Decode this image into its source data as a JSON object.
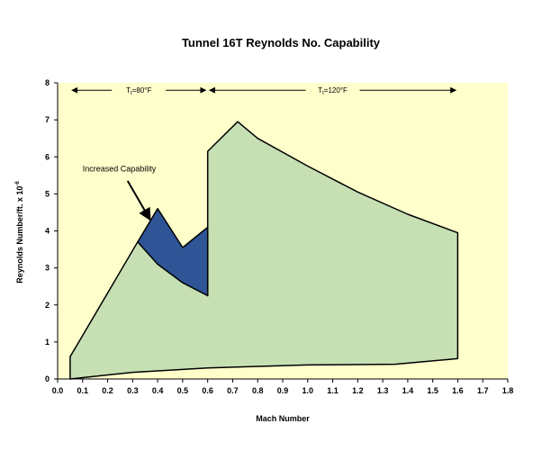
{
  "chart_data": {
    "type": "area",
    "title": "Tunnel 16T Reynolds No. Capability",
    "xlabel": "Mach Number",
    "ylabel": "Reynolds Number/ft. x 10",
    "ylabel_exponent": "-6",
    "xlim": [
      0.0,
      1.8
    ],
    "ylim": [
      0,
      8
    ],
    "x_ticks": [
      "0.0",
      "0.1",
      "0.2",
      "0.3",
      "0.4",
      "0.5",
      "0.6",
      "0.7",
      "0.8",
      "0.9",
      "1.0",
      "1.1",
      "1.2",
      "1.3",
      "1.4",
      "1.5",
      "1.6",
      "1.7",
      "1.8"
    ],
    "y_ticks": [
      "0",
      "1",
      "2",
      "3",
      "4",
      "5",
      "6",
      "7",
      "8"
    ],
    "grid": false,
    "colors": {
      "plot_background": "#ffffcc",
      "base_envelope_fill": "#c6e0b4",
      "increased_fill": "#2f5597",
      "outline": "#000000"
    },
    "series": [
      {
        "role": "base envelope",
        "polygon": [
          [
            0.05,
            0.0
          ],
          [
            0.05,
            0.6
          ],
          [
            0.32,
            3.7
          ],
          [
            0.6,
            2.25
          ],
          [
            0.6,
            6.15
          ],
          [
            0.72,
            6.95
          ],
          [
            0.8,
            6.5
          ],
          [
            1.0,
            5.75
          ],
          [
            1.2,
            5.05
          ],
          [
            1.4,
            4.45
          ],
          [
            1.6,
            3.95
          ],
          [
            1.6,
            0.55
          ],
          [
            1.35,
            0.4
          ],
          [
            1.0,
            0.38
          ],
          [
            0.6,
            0.3
          ],
          [
            0.3,
            0.18
          ],
          [
            0.05,
            0.0
          ]
        ]
      },
      {
        "role": "increased capability",
        "polygon": [
          [
            0.32,
            3.7
          ],
          [
            0.4,
            4.6
          ],
          [
            0.5,
            3.55
          ],
          [
            0.6,
            4.1
          ],
          [
            0.6,
            2.25
          ],
          [
            0.5,
            2.6
          ],
          [
            0.4,
            3.1
          ],
          [
            0.32,
            3.7
          ]
        ]
      }
    ],
    "annotations": [
      {
        "text": "Increased Capability",
        "label_at": [
          0.1,
          5.6
        ],
        "arrow_from": [
          0.28,
          5.35
        ],
        "arrow_to": [
          0.37,
          4.3
        ]
      }
    ],
    "ranges": [
      {
        "label": "T",
        "subscript": "t",
        "value": "=80°F",
        "x_start": 0.05,
        "x_end": 0.6,
        "y": 7.8
      },
      {
        "label": "T",
        "subscript": "t",
        "value": "=120°F",
        "x_start": 0.6,
        "x_end": 1.6,
        "y": 7.8
      }
    ]
  }
}
